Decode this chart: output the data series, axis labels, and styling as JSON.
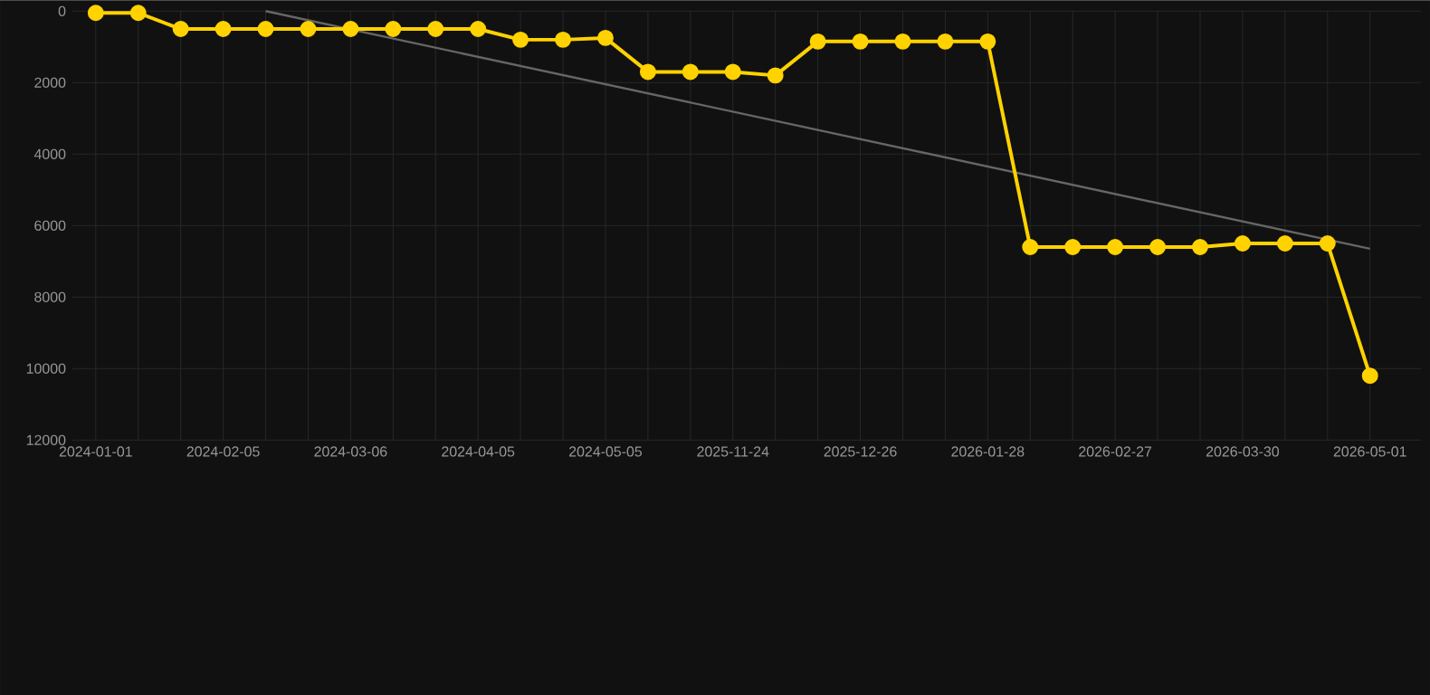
{
  "chart_data": {
    "type": "line",
    "categories": [
      "2024-01-01",
      null,
      null,
      "2024-02-05",
      null,
      null,
      "2024-03-06",
      null,
      null,
      "2024-04-05",
      null,
      null,
      "2024-05-05",
      null,
      null,
      "2025-11-24",
      null,
      null,
      "2025-12-26",
      null,
      null,
      "2026-01-28",
      null,
      null,
      "2026-02-27",
      null,
      null,
      "2026-03-30",
      null,
      null,
      "2026-05-01"
    ],
    "series": [
      {
        "color": "#ffd200",
        "values": [
          50,
          50,
          500,
          500,
          500,
          500,
          500,
          500,
          500,
          500,
          800,
          800,
          750,
          1700,
          1700,
          1700,
          1800,
          850,
          850,
          850,
          850,
          850,
          6600,
          6600,
          6600,
          6600,
          6600,
          6500,
          6500,
          6500,
          10200
        ]
      },
      {
        "type": "line",
        "color": "#666666",
        "marker": "none",
        "values": [
          null,
          null,
          null,
          null,
          0,
          null,
          null,
          null,
          null,
          null,
          null,
          null,
          null,
          null,
          null,
          null,
          null,
          null,
          null,
          null,
          null,
          null,
          null,
          null,
          null,
          null,
          null,
          null,
          null,
          null,
          6650
        ]
      }
    ],
    "ylim": [
      12000,
      0
    ],
    "yticks": [
      0,
      2000,
      4000,
      6000,
      8000,
      10000,
      12000
    ],
    "grid": true,
    "marker": "circle",
    "line_style": "solid"
  }
}
